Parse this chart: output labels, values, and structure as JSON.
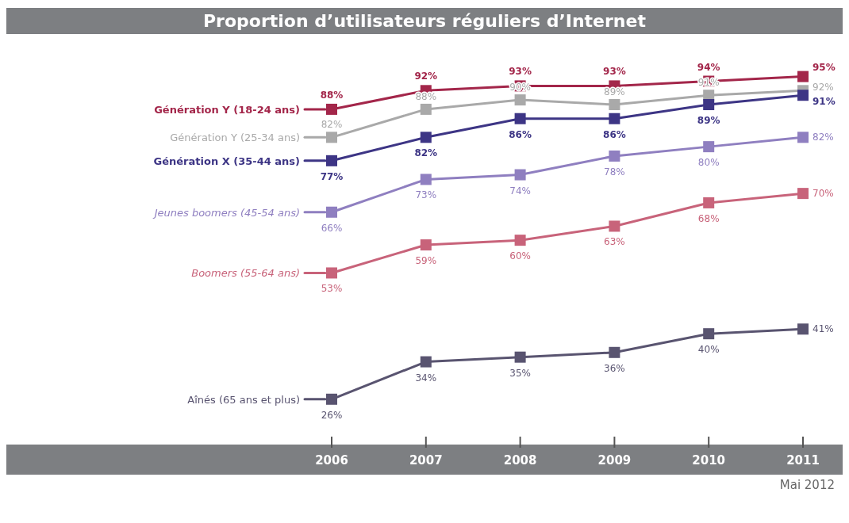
{
  "chart_data": {
    "type": "line",
    "title": "Proportion d’utilisateurs réguliers d’Internet",
    "categories": [
      "2006",
      "2007",
      "2008",
      "2009",
      "2010",
      "2011"
    ],
    "marker": "square",
    "legend": "left",
    "grid": false,
    "annotations": [
      "Mai 2012"
    ],
    "series": [
      {
        "name": "Génération Y (18-24 ans)",
        "color": "#a3264a",
        "values": [
          88,
          92,
          93,
          93,
          94,
          95
        ],
        "value_labels": [
          "88%",
          "92%",
          "93%",
          "93%",
          "94%",
          "95%"
        ]
      },
      {
        "name": "Génération Y (25-34 ans)",
        "color": "#a9a9a9",
        "values": [
          82,
          88,
          90,
          89,
          91,
          92
        ],
        "value_labels": [
          "82%",
          "88%",
          "90%",
          "89%",
          "91%",
          "92%"
        ]
      },
      {
        "name": "Génération X (35-44 ans)",
        "color": "#3d3585",
        "values": [
          77,
          82,
          86,
          86,
          89,
          91
        ],
        "value_labels": [
          "77%",
          "82%",
          "86%",
          "86%",
          "89%",
          "91%"
        ]
      },
      {
        "name": "Jeunes boomers (45-54 ans)",
        "color": "#8f7fc0",
        "values": [
          66,
          73,
          74,
          78,
          80,
          82
        ],
        "value_labels": [
          "66%",
          "73%",
          "74%",
          "78%",
          "80%",
          "82%"
        ]
      },
      {
        "name": "Boomers (55-64 ans)",
        "color": "#c8637a",
        "values": [
          53,
          59,
          60,
          63,
          68,
          70
        ],
        "value_labels": [
          "53%",
          "59%",
          "60%",
          "63%",
          "68%",
          "70%"
        ]
      },
      {
        "name": "Aînés (65 ans et plus)",
        "color": "#595470",
        "values": [
          26,
          34,
          35,
          36,
          40,
          41
        ],
        "value_labels": [
          "26%",
          "34%",
          "35%",
          "36%",
          "40%",
          "41%"
        ]
      }
    ]
  }
}
